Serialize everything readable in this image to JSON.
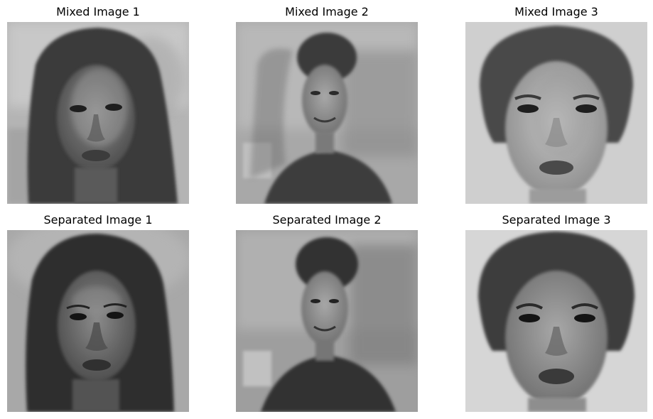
{
  "figure": {
    "rows": [
      {
        "row_id": "mixed",
        "panels": [
          {
            "title": "Mixed Image 1",
            "image": "grayscale-portrait-woman-curly-hair-blended"
          },
          {
            "title": "Mixed Image 2",
            "image": "grayscale-portrait-man-curly-hair-blended"
          },
          {
            "title": "Mixed Image 3",
            "image": "grayscale-portrait-woman-updo-blended"
          }
        ]
      },
      {
        "row_id": "separated",
        "panels": [
          {
            "title": "Separated Image 1",
            "image": "grayscale-portrait-woman-curly-hair"
          },
          {
            "title": "Separated Image 2",
            "image": "grayscale-portrait-man-curly-hair"
          },
          {
            "title": "Separated Image 3",
            "image": "grayscale-portrait-woman-updo"
          }
        ]
      }
    ]
  }
}
